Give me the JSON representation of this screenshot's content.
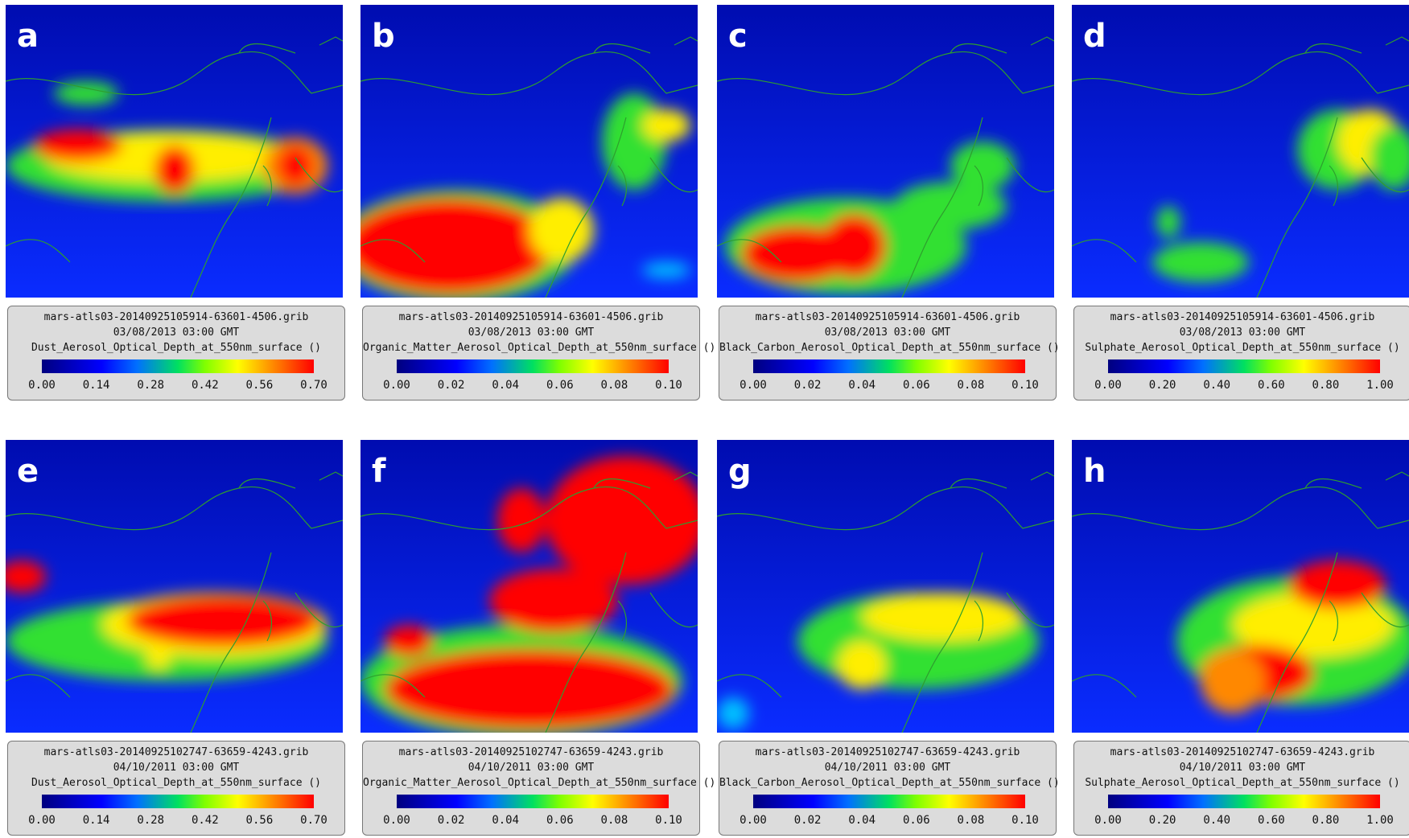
{
  "panels": [
    {
      "label": "a",
      "file": "mars-atls03-20140925105914-63601-4506.grib",
      "time": "03/08/2013 03:00 GMT",
      "variable": "Dust_Aerosol_Optical_Depth_at_550nm_surface ()",
      "ticks": [
        "0.00",
        "0.14",
        "0.28",
        "0.42",
        "0.56",
        "0.70"
      ]
    },
    {
      "label": "b",
      "file": "mars-atls03-20140925105914-63601-4506.grib",
      "time": "03/08/2013 03:00 GMT",
      "variable": "Organic_Matter_Aerosol_Optical_Depth_at_550nm_surface ()",
      "ticks": [
        "0.00",
        "0.02",
        "0.04",
        "0.06",
        "0.08",
        "0.10"
      ]
    },
    {
      "label": "c",
      "file": "mars-atls03-20140925105914-63601-4506.grib",
      "time": "03/08/2013 03:00 GMT",
      "variable": "Black_Carbon_Aerosol_Optical_Depth_at_550nm_surface ()",
      "ticks": [
        "0.00",
        "0.02",
        "0.04",
        "0.06",
        "0.08",
        "0.10"
      ]
    },
    {
      "label": "d",
      "file": "mars-atls03-20140925105914-63601-4506.grib",
      "time": "03/08/2013 03:00 GMT",
      "variable": "Sulphate_Aerosol_Optical_Depth_at_550nm_surface ()",
      "ticks": [
        "0.00",
        "0.20",
        "0.40",
        "0.60",
        "0.80",
        "1.00"
      ]
    },
    {
      "label": "e",
      "file": "mars-atls03-20140925102747-63659-4243.grib",
      "time": "04/10/2011 03:00 GMT",
      "variable": "Dust_Aerosol_Optical_Depth_at_550nm_surface ()",
      "ticks": [
        "0.00",
        "0.14",
        "0.28",
        "0.42",
        "0.56",
        "0.70"
      ]
    },
    {
      "label": "f",
      "file": "mars-atls03-20140925102747-63659-4243.grib",
      "time": "04/10/2011 03:00 GMT",
      "variable": "Organic_Matter_Aerosol_Optical_Depth_at_550nm_surface ()",
      "ticks": [
        "0.00",
        "0.02",
        "0.04",
        "0.06",
        "0.08",
        "0.10"
      ]
    },
    {
      "label": "g",
      "file": "mars-atls03-20140925102747-63659-4243.grib",
      "time": "04/10/2011 03:00 GMT",
      "variable": "Black_Carbon_Aerosol_Optical_Depth_at_550nm_surface ()",
      "ticks": [
        "0.00",
        "0.02",
        "0.04",
        "0.06",
        "0.08",
        "0.10"
      ]
    },
    {
      "label": "h",
      "file": "mars-atls03-20140925102747-63659-4243.grib",
      "time": "04/10/2011 03:00 GMT",
      "variable": "Sulphate_Aerosol_Optical_Depth_at_550nm_surface ()",
      "ticks": [
        "0.00",
        "0.20",
        "0.40",
        "0.60",
        "0.80",
        "1.00"
      ]
    }
  ]
}
